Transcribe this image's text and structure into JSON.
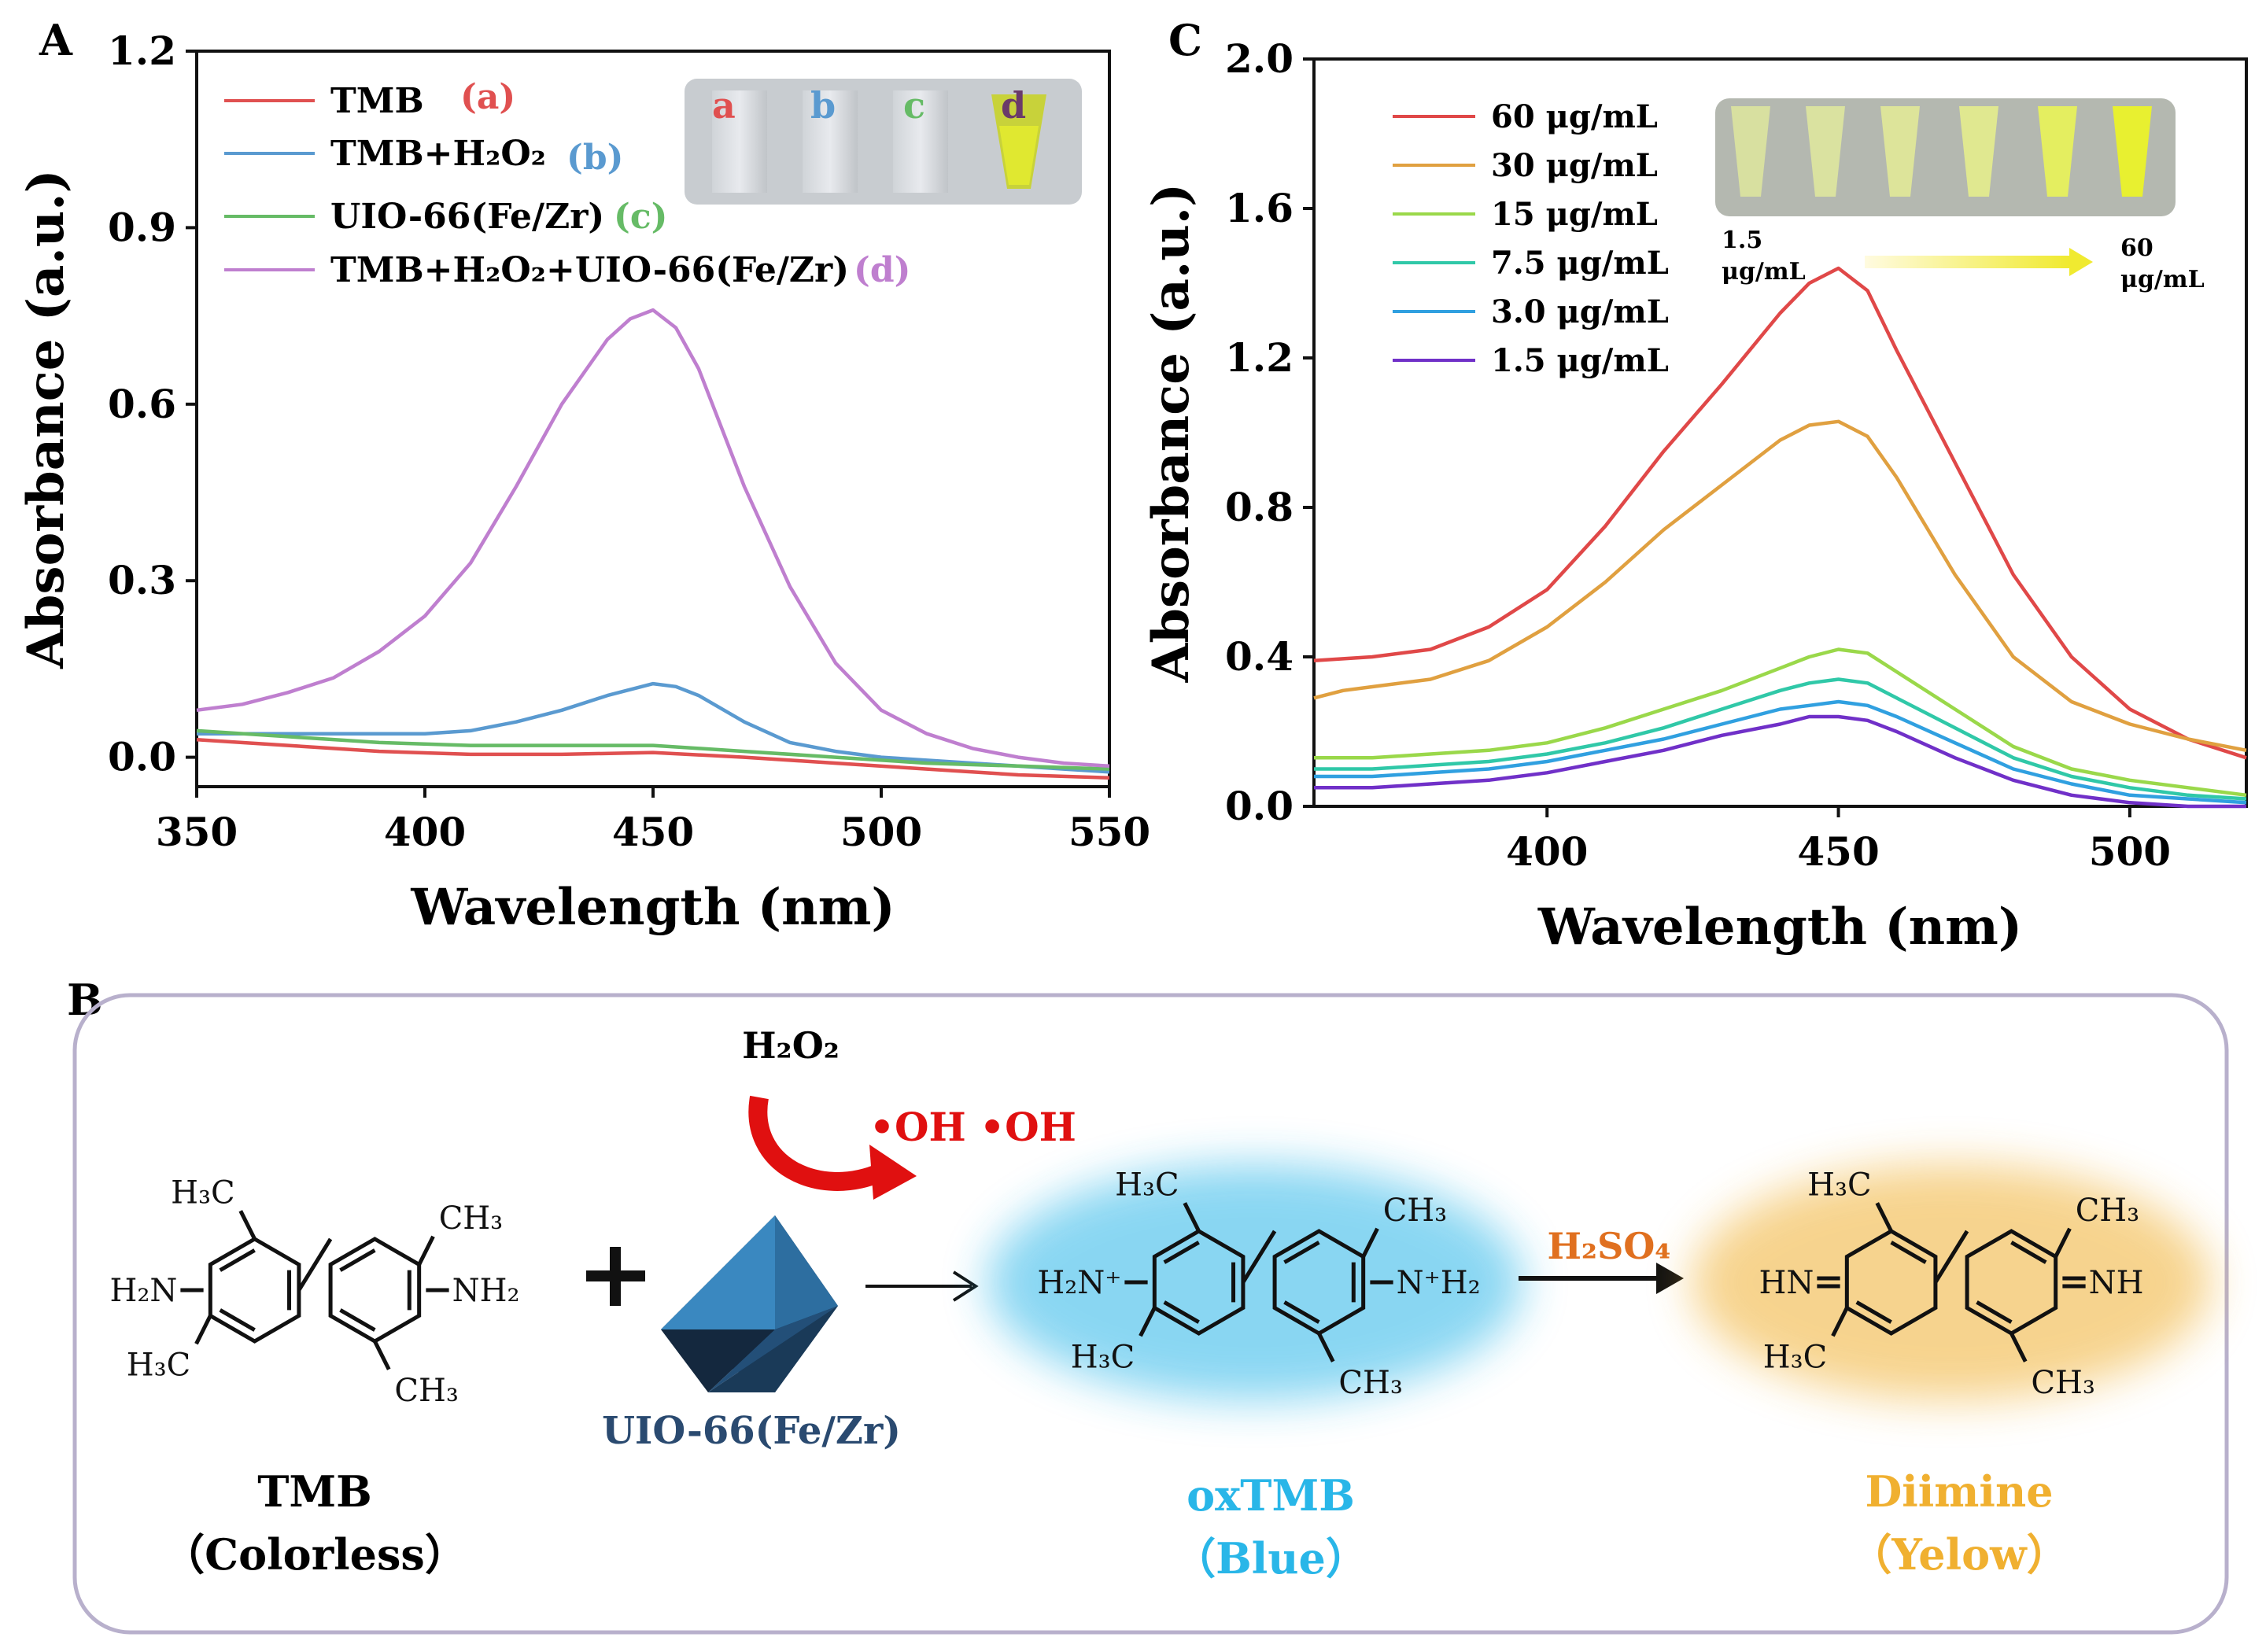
{
  "panel_labels": {
    "a": "A",
    "b": "B",
    "c": "C"
  },
  "chart_data": [
    {
      "type": "line",
      "panel": "A",
      "xlabel": "Wavelength (nm)",
      "ylabel": "Absorbance (a.u.)",
      "xlim": [
        350,
        550
      ],
      "ylim": [
        -0.05,
        1.2
      ],
      "xticks": [
        "350",
        "400",
        "450",
        "500",
        "550"
      ],
      "yticks": [
        "0.0",
        "0.3",
        "0.6",
        "0.9",
        "1.2"
      ],
      "xtick_values": [
        350,
        400,
        450,
        500,
        550
      ],
      "ytick_values": [
        0.0,
        0.3,
        0.6,
        0.9,
        1.2
      ],
      "series": [
        {
          "name": "TMB",
          "tag": "(a)",
          "color": "#e05050",
          "x": [
            350,
            370,
            390,
            410,
            430,
            450,
            470,
            490,
            510,
            530,
            550
          ],
          "y": [
            0.03,
            0.02,
            0.01,
            0.005,
            0.005,
            0.008,
            0.0,
            -0.01,
            -0.02,
            -0.03,
            -0.035
          ]
        },
        {
          "name": "TMB+H2O2",
          "tag": "(b)",
          "color": "#5a9ad0",
          "x": [
            350,
            360,
            370,
            380,
            390,
            400,
            410,
            420,
            430,
            440,
            450,
            455,
            460,
            470,
            480,
            490,
            500,
            520,
            540,
            550
          ],
          "y": [
            0.04,
            0.04,
            0.04,
            0.04,
            0.04,
            0.04,
            0.045,
            0.06,
            0.08,
            0.105,
            0.125,
            0.12,
            0.105,
            0.06,
            0.025,
            0.01,
            0.0,
            -0.01,
            -0.02,
            -0.025
          ]
        },
        {
          "name": "UIO-66(Fe/Zr)",
          "tag": "(c)",
          "color": "#66bb66",
          "x": [
            350,
            370,
            390,
            410,
            430,
            450,
            470,
            490,
            510,
            530,
            550
          ],
          "y": [
            0.045,
            0.035,
            0.025,
            0.02,
            0.02,
            0.02,
            0.01,
            0.0,
            -0.01,
            -0.015,
            -0.02
          ]
        },
        {
          "name": "TMB+H2O2+UIO-66(Fe/Zr)",
          "tag": "(d)",
          "color": "#bf7fcf",
          "x": [
            350,
            360,
            370,
            380,
            390,
            400,
            410,
            420,
            430,
            440,
            445,
            450,
            455,
            460,
            470,
            480,
            490,
            500,
            510,
            520,
            530,
            540,
            550
          ],
          "y": [
            0.08,
            0.09,
            0.11,
            0.135,
            0.18,
            0.24,
            0.33,
            0.46,
            0.6,
            0.71,
            0.745,
            0.76,
            0.73,
            0.66,
            0.46,
            0.29,
            0.16,
            0.08,
            0.04,
            0.015,
            0.0,
            -0.01,
            -0.015
          ]
        }
      ],
      "legend_labels": [
        "TMB",
        "TMB+H₂O₂",
        "UIO-66(Fe/Zr)",
        "TMB+H₂O₂+UIO-66(Fe/Zr)"
      ],
      "inset": {
        "labels": [
          "a",
          "b",
          "c",
          "d"
        ],
        "label_colors": [
          "#e05050",
          "#5a9ad0",
          "#66bb66",
          "#6a3a6a"
        ]
      }
    },
    {
      "type": "line",
      "panel": "C",
      "xlabel": "Wavelength (nm)",
      "ylabel": "Absorbance (a.u.)",
      "xlim": [
        360,
        520
      ],
      "ylim": [
        0.0,
        2.0
      ],
      "xticks": [
        "400",
        "450",
        "500"
      ],
      "yticks": [
        "0.0",
        "0.4",
        "0.8",
        "1.2",
        "1.6",
        "2.0"
      ],
      "xtick_values": [
        400,
        450,
        500
      ],
      "ytick_values": [
        0.0,
        0.4,
        0.8,
        1.2,
        1.6,
        2.0
      ],
      "series": [
        {
          "name": "60 μg/mL",
          "color": "#e04848",
          "x": [
            360,
            370,
            380,
            390,
            400,
            410,
            420,
            430,
            440,
            445,
            450,
            455,
            460,
            470,
            480,
            490,
            500,
            510,
            520
          ],
          "y": [
            0.39,
            0.4,
            0.42,
            0.48,
            0.58,
            0.75,
            0.95,
            1.13,
            1.32,
            1.4,
            1.44,
            1.38,
            1.22,
            0.92,
            0.62,
            0.4,
            0.26,
            0.18,
            0.13
          ]
        },
        {
          "name": "30 μg/mL",
          "color": "#e0a040",
          "x": [
            360,
            365,
            370,
            380,
            390,
            400,
            410,
            420,
            430,
            440,
            445,
            450,
            455,
            460,
            470,
            480,
            490,
            500,
            510,
            520
          ],
          "y": [
            0.29,
            0.31,
            0.32,
            0.34,
            0.39,
            0.48,
            0.6,
            0.74,
            0.86,
            0.98,
            1.02,
            1.03,
            0.99,
            0.88,
            0.62,
            0.4,
            0.28,
            0.22,
            0.18,
            0.15
          ]
        },
        {
          "name": "15 μg/mL",
          "color": "#9ad84a",
          "x": [
            360,
            370,
            380,
            390,
            400,
            410,
            420,
            430,
            440,
            445,
            450,
            455,
            460,
            470,
            480,
            490,
            500,
            510,
            520
          ],
          "y": [
            0.13,
            0.13,
            0.14,
            0.15,
            0.17,
            0.21,
            0.26,
            0.31,
            0.37,
            0.4,
            0.42,
            0.41,
            0.36,
            0.26,
            0.16,
            0.1,
            0.07,
            0.05,
            0.03
          ]
        },
        {
          "name": "7.5 μg/mL",
          "color": "#30c8a8",
          "x": [
            360,
            370,
            380,
            390,
            400,
            410,
            420,
            430,
            440,
            445,
            450,
            455,
            460,
            470,
            480,
            490,
            500,
            510,
            520
          ],
          "y": [
            0.1,
            0.1,
            0.11,
            0.12,
            0.14,
            0.17,
            0.21,
            0.26,
            0.31,
            0.33,
            0.34,
            0.33,
            0.29,
            0.21,
            0.13,
            0.08,
            0.05,
            0.03,
            0.02
          ]
        },
        {
          "name": "3.0 μg/mL",
          "color": "#30a0e0",
          "x": [
            360,
            370,
            380,
            390,
            400,
            410,
            420,
            430,
            440,
            445,
            450,
            455,
            460,
            470,
            480,
            490,
            500,
            510,
            520
          ],
          "y": [
            0.08,
            0.08,
            0.09,
            0.1,
            0.12,
            0.15,
            0.18,
            0.22,
            0.26,
            0.27,
            0.28,
            0.27,
            0.24,
            0.17,
            0.1,
            0.06,
            0.03,
            0.02,
            0.01
          ]
        },
        {
          "name": "1.5 μg/mL",
          "color": "#7030c8",
          "x": [
            360,
            370,
            380,
            390,
            400,
            410,
            420,
            430,
            440,
            445,
            450,
            455,
            460,
            470,
            480,
            490,
            500,
            510,
            520
          ],
          "y": [
            0.05,
            0.05,
            0.06,
            0.07,
            0.09,
            0.12,
            0.15,
            0.19,
            0.22,
            0.24,
            0.24,
            0.23,
            0.2,
            0.13,
            0.07,
            0.03,
            0.01,
            0.0,
            0.0
          ]
        }
      ],
      "inset": {
        "low_label": [
          "1.5",
          "μg/mL"
        ],
        "high_label": [
          "60",
          "μg/mL"
        ]
      }
    }
  ],
  "scheme": {
    "tmb": {
      "name": "TMB",
      "note": "（Colorless）"
    },
    "catalyst": "UIO-66(Fe/Zr)",
    "oxidant": "H₂O₂",
    "radicals": "•OH •OH",
    "oxtmb": {
      "name": "oxTMB",
      "note": "（Blue）"
    },
    "acid": "H₂SO₄",
    "diimine": {
      "name": "Diimine",
      "note": "（Yelow）"
    },
    "groups": {
      "h3c": "H₃C",
      "ch3": "CH₃",
      "h2n": "H₂N",
      "nh2": "NH₂",
      "h2n_plus": "H₂N⁺",
      "nh2_plus": "N⁺H₂",
      "hn": "HN",
      "nh": "NH"
    },
    "colors": {
      "blue": "#29b6e8",
      "yellow": "#f0b030",
      "red": "#e01010",
      "orange": "#e07020",
      "navy": "#2a4a70"
    }
  }
}
